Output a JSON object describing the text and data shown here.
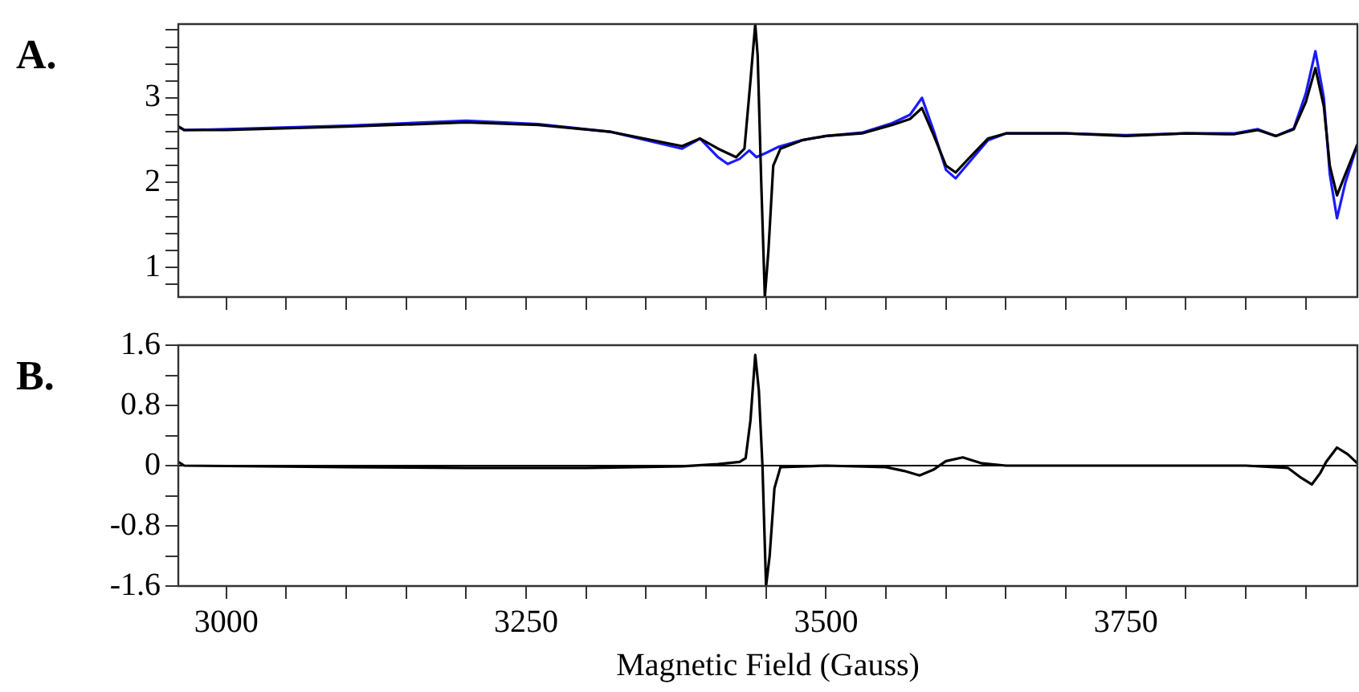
{
  "chart_data": [
    {
      "type": "line",
      "title": "A.",
      "tick_labels": "y",
      "legend": false,
      "grid": false,
      "marker": "none",
      "line_style": "solid",
      "xlim": [
        2960,
        3943
      ],
      "ylim": [
        0.65,
        3.87
      ],
      "xticks": [
        {
          "value": 3000,
          "label": null
        },
        {
          "value": 3050,
          "label": null
        },
        {
          "value": 3100,
          "label": null
        },
        {
          "value": 3150,
          "label": null
        },
        {
          "value": 3200,
          "label": null
        },
        {
          "value": 3250,
          "label": null
        },
        {
          "value": 3300,
          "label": null
        },
        {
          "value": 3350,
          "label": null
        },
        {
          "value": 3400,
          "label": null
        },
        {
          "value": 3450,
          "label": null
        },
        {
          "value": 3500,
          "label": null
        },
        {
          "value": 3550,
          "label": null
        },
        {
          "value": 3600,
          "label": null
        },
        {
          "value": 3650,
          "label": null
        },
        {
          "value": 3700,
          "label": null
        },
        {
          "value": 3750,
          "label": null
        },
        {
          "value": 3800,
          "label": null
        },
        {
          "value": 3850,
          "label": null
        },
        {
          "value": 3900,
          "label": null
        }
      ],
      "yticks": [
        {
          "value": 0.8,
          "label": null
        },
        1,
        {
          "value": 1.2,
          "label": null
        },
        {
          "value": 1.4,
          "label": null
        },
        {
          "value": 1.6,
          "label": null
        },
        {
          "value": 1.8,
          "label": null
        },
        2,
        {
          "value": 2.2,
          "label": null
        },
        {
          "value": 2.4,
          "label": null
        },
        {
          "value": 2.6,
          "label": null
        },
        {
          "value": 2.8,
          "label": null
        },
        3,
        {
          "value": 3.2,
          "label": null
        },
        {
          "value": 3.4,
          "label": null
        },
        {
          "value": 3.6,
          "label": null
        },
        {
          "value": 3.8,
          "label": null
        }
      ],
      "series": [
        {
          "color": "#1a1aff",
          "x": [
            2960,
            2965,
            3000,
            3100,
            3200,
            3260,
            3320,
            3380,
            3395,
            3410,
            3418,
            3428,
            3436,
            3442,
            3450,
            3460,
            3480,
            3500,
            3530,
            3555,
            3570,
            3580,
            3590,
            3600,
            3608,
            3620,
            3635,
            3650,
            3700,
            3750,
            3800,
            3840,
            3860,
            3875,
            3890,
            3900,
            3908,
            3915,
            3920,
            3926,
            3933,
            3943
          ],
          "values": [
            2.66,
            2.62,
            2.63,
            2.67,
            2.73,
            2.69,
            2.6,
            2.4,
            2.52,
            2.3,
            2.22,
            2.28,
            2.38,
            2.3,
            2.35,
            2.42,
            2.5,
            2.55,
            2.59,
            2.7,
            2.8,
            3.0,
            2.6,
            2.15,
            2.05,
            2.25,
            2.5,
            2.58,
            2.58,
            2.56,
            2.58,
            2.58,
            2.63,
            2.55,
            2.64,
            3.05,
            3.55,
            3.0,
            2.1,
            1.58,
            2.0,
            2.45
          ]
        },
        {
          "color": "#000000",
          "x": [
            2960,
            2965,
            3000,
            3100,
            3200,
            3260,
            3320,
            3380,
            3395,
            3410,
            3425,
            3432,
            3437,
            3441,
            3443,
            3446,
            3449,
            3452,
            3456,
            3462,
            3480,
            3500,
            3530,
            3555,
            3570,
            3580,
            3590,
            3600,
            3608,
            3620,
            3635,
            3650,
            3700,
            3750,
            3800,
            3840,
            3860,
            3875,
            3890,
            3900,
            3908,
            3915,
            3920,
            3926,
            3933,
            3943
          ],
          "values": [
            2.66,
            2.62,
            2.62,
            2.66,
            2.71,
            2.68,
            2.6,
            2.43,
            2.52,
            2.4,
            2.3,
            2.4,
            3.2,
            3.87,
            3.5,
            2.0,
            0.65,
            1.2,
            2.2,
            2.4,
            2.5,
            2.55,
            2.58,
            2.68,
            2.75,
            2.88,
            2.55,
            2.2,
            2.12,
            2.3,
            2.52,
            2.58,
            2.58,
            2.55,
            2.58,
            2.57,
            2.62,
            2.55,
            2.63,
            2.95,
            3.35,
            2.9,
            2.2,
            1.85,
            2.1,
            2.45
          ]
        }
      ]
    },
    {
      "type": "line",
      "title": "B.",
      "xlabel": "Magnetic Field (Gauss)",
      "legend": false,
      "grid": false,
      "marker": "none",
      "line_style": "solid",
      "xlim": [
        2960,
        3943
      ],
      "ylim": [
        -1.6,
        1.6
      ],
      "xticks": [
        3000,
        {
          "value": 3050,
          "label": null
        },
        {
          "value": 3100,
          "label": null
        },
        {
          "value": 3150,
          "label": null
        },
        {
          "value": 3200,
          "label": null
        },
        3250,
        {
          "value": 3300,
          "label": null
        },
        {
          "value": 3350,
          "label": null
        },
        {
          "value": 3400,
          "label": null
        },
        {
          "value": 3450,
          "label": null
        },
        3500,
        {
          "value": 3550,
          "label": null
        },
        {
          "value": 3600,
          "label": null
        },
        {
          "value": 3650,
          "label": null
        },
        {
          "value": 3700,
          "label": null
        },
        3750,
        {
          "value": 3800,
          "label": null
        },
        {
          "value": 3850,
          "label": null
        },
        {
          "value": 3900,
          "label": null
        }
      ],
      "yticks": [
        -1.6,
        {
          "value": -1.2,
          "label": null
        },
        -0.8,
        {
          "value": -0.4,
          "label": null
        },
        0,
        {
          "value": 0.4,
          "label": null
        },
        0.8,
        {
          "value": 1.2,
          "label": null
        },
        1.6
      ],
      "ref_lines": [
        {
          "axis": "y",
          "value": 0,
          "color": "#000000"
        }
      ],
      "series": [
        {
          "color": "#000000",
          "x": [
            2960,
            2965,
            3100,
            3200,
            3300,
            3380,
            3410,
            3428,
            3433,
            3437,
            3441,
            3444,
            3447,
            3450,
            3453,
            3457,
            3462,
            3500,
            3550,
            3565,
            3578,
            3590,
            3600,
            3614,
            3630,
            3650,
            3750,
            3850,
            3885,
            3895,
            3905,
            3912,
            3917,
            3926,
            3935,
            3943
          ],
          "values": [
            0.05,
            0,
            -0.02,
            -0.03,
            -0.03,
            -0.01,
            0.02,
            0.05,
            0.1,
            0.6,
            1.47,
            1.0,
            0,
            -1.6,
            -1.2,
            -0.3,
            -0.02,
            0,
            -0.02,
            -0.07,
            -0.13,
            -0.05,
            0.06,
            0.11,
            0.03,
            0,
            0,
            0,
            -0.03,
            -0.15,
            -0.25,
            -0.1,
            0.05,
            0.24,
            0.15,
            0.03
          ]
        }
      ]
    }
  ]
}
